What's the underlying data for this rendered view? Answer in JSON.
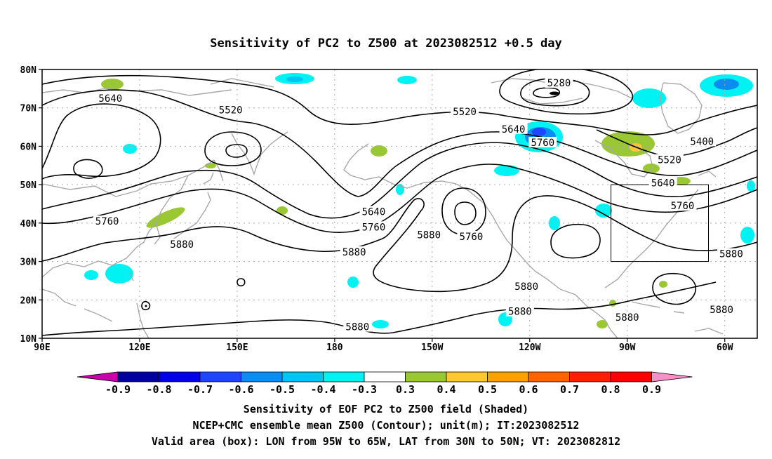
{
  "title": "Sensitivity of PC2 to Z500 at 2023082512 +0.5 day",
  "map": {
    "x_ticks": [
      "90E",
      "120E",
      "150E",
      "180",
      "150W",
      "120W",
      "90W",
      "60W"
    ],
    "y_ticks": [
      "80N",
      "70N",
      "60N",
      "50N",
      "40N",
      "30N",
      "20N",
      "10N"
    ],
    "lon_range": [
      90,
      310
    ],
    "lat_range": [
      10,
      80
    ],
    "grid": true,
    "valid_box": {
      "lon_west": -95,
      "lon_east": -65,
      "lat_south": 30,
      "lat_north": 50
    },
    "contour_labels": [
      {
        "text": "5280",
        "lon": 249,
        "lat": 76.5
      },
      {
        "text": "5400",
        "lon": 293,
        "lat": 61.3
      },
      {
        "text": "5520",
        "lon": 148,
        "lat": 69.5
      },
      {
        "text": "5520",
        "lon": 220,
        "lat": 69.0
      },
      {
        "text": "5520",
        "lon": 283,
        "lat": 56.5
      },
      {
        "text": "5640",
        "lon": 111,
        "lat": 72.5
      },
      {
        "text": "5640",
        "lon": 235,
        "lat": 64.5
      },
      {
        "text": "5640",
        "lon": 281,
        "lat": 50.5
      },
      {
        "text": "5640",
        "lon": 192,
        "lat": 43.0
      },
      {
        "text": "5760",
        "lon": 110,
        "lat": 40.5
      },
      {
        "text": "5760",
        "lon": 192,
        "lat": 39.0
      },
      {
        "text": "5760",
        "lon": 222,
        "lat": 36.5
      },
      {
        "text": "5760",
        "lon": 244,
        "lat": 61.0
      },
      {
        "text": "5760",
        "lon": 287,
        "lat": 44.5
      },
      {
        "text": "5880",
        "lon": 133,
        "lat": 34.5
      },
      {
        "text": "5880",
        "lon": 186,
        "lat": 32.5
      },
      {
        "text": "5880",
        "lon": 209,
        "lat": 37.0
      },
      {
        "text": "5880",
        "lon": 239,
        "lat": 23.5
      },
      {
        "text": "5880",
        "lon": 237,
        "lat": 17.0
      },
      {
        "text": "5880",
        "lon": 187,
        "lat": 13.0
      },
      {
        "text": "5880",
        "lon": 270,
        "lat": 15.5
      },
      {
        "text": "5880",
        "lon": 299,
        "lat": 17.5
      },
      {
        "text": "5880",
        "lon": 302,
        "lat": 32.0
      }
    ]
  },
  "colorbar": {
    "labels": [
      "-0.9",
      "-0.8",
      "-0.7",
      "-0.6",
      "-0.5",
      "-0.4",
      "-0.3",
      "0.3",
      "0.4",
      "0.5",
      "0.6",
      "0.7",
      "0.8",
      "0.9"
    ],
    "colors": [
      "#cc00aa",
      "#00009e",
      "#0000e6",
      "#1e46ff",
      "#0a8cf0",
      "#00c4f4",
      "#00f2f2",
      "#ffffff",
      "#9ac832",
      "#ffc832",
      "#ffa000",
      "#ff6400",
      "#ff2000",
      "#ff0000",
      "#f890c8"
    ]
  },
  "caption": {
    "line1": "Sensitivity of EOF PC2 to Z500 field (Shaded)",
    "line2": "NCEP+CMC ensemble mean Z500 (Contour); unit(m); IT:2023082512",
    "line3": "Valid area (box): LON from 95W to 65W, LAT from 30N to 50N; VT: 2023082812"
  }
}
